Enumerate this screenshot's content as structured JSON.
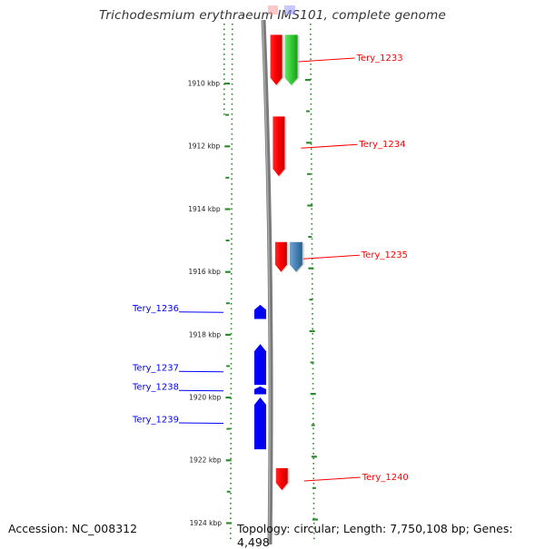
{
  "title": "Trichodesmium erythraeum IMS101, complete genome",
  "footer": {
    "accession": "Accession: NC_008312",
    "summary": "Topology: circular; Length: 7,750,108 bp; Genes: 4,498"
  },
  "colors": {
    "forward": "#ff0000",
    "reverse": "#0000ff",
    "green": "#33cc33",
    "steelblue": "#4682b4",
    "axis_ticks": "#2e8b2e",
    "backbone": "#808080"
  },
  "axis": {
    "unit": "kbp",
    "start_kbp": 1908,
    "end_kbp": 1924,
    "ticks": [
      {
        "kbp": 1910,
        "label": "1910 kbp"
      },
      {
        "kbp": 1912,
        "label": "1912 kbp"
      },
      {
        "kbp": 1914,
        "label": "1914 kbp"
      },
      {
        "kbp": 1916,
        "label": "1916 kbp"
      },
      {
        "kbp": 1918,
        "label": "1918 kbp"
      },
      {
        "kbp": 1920,
        "label": "1920 kbp"
      },
      {
        "kbp": 1922,
        "label": "1922 kbp"
      },
      {
        "kbp": 1924,
        "label": "1924 kbp"
      }
    ]
  },
  "genes": [
    {
      "name": "Tery_1233",
      "strand": "+",
      "start_kbp": 1908.45,
      "end_kbp": 1910.05,
      "color": "#ff0000",
      "labeled": true
    },
    {
      "name": "",
      "strand": "+",
      "start_kbp": 1908.45,
      "end_kbp": 1910.05,
      "color": "#33cc33",
      "labeled": false
    },
    {
      "name": "Tery_1234",
      "strand": "+",
      "start_kbp": 1911.05,
      "end_kbp": 1912.95,
      "color": "#ff0000",
      "labeled": true
    },
    {
      "name": "Tery_1235",
      "strand": "+",
      "start_kbp": 1915.05,
      "end_kbp": 1916.0,
      "color": "#ff0000",
      "labeled": true
    },
    {
      "name": "",
      "strand": "+",
      "start_kbp": 1915.05,
      "end_kbp": 1916.0,
      "color": "#4682b4",
      "labeled": false
    },
    {
      "name": "Tery_1236",
      "strand": "-",
      "start_kbp": 1917.05,
      "end_kbp": 1917.5,
      "color": "#0000ff",
      "labeled": true
    },
    {
      "name": "Tery_1237",
      "strand": "-",
      "start_kbp": 1918.3,
      "end_kbp": 1919.6,
      "color": "#0000ff",
      "labeled": true
    },
    {
      "name": "Tery_1238",
      "strand": "-",
      "start_kbp": 1919.65,
      "end_kbp": 1919.9,
      "color": "#0000ff",
      "labeled": true
    },
    {
      "name": "Tery_1239",
      "strand": "-",
      "start_kbp": 1920.0,
      "end_kbp": 1921.65,
      "color": "#0000ff",
      "labeled": true
    },
    {
      "name": "Tery_1240",
      "strand": "+",
      "start_kbp": 1922.25,
      "end_kbp": 1922.95,
      "color": "#ff0000",
      "labeled": true
    }
  ]
}
